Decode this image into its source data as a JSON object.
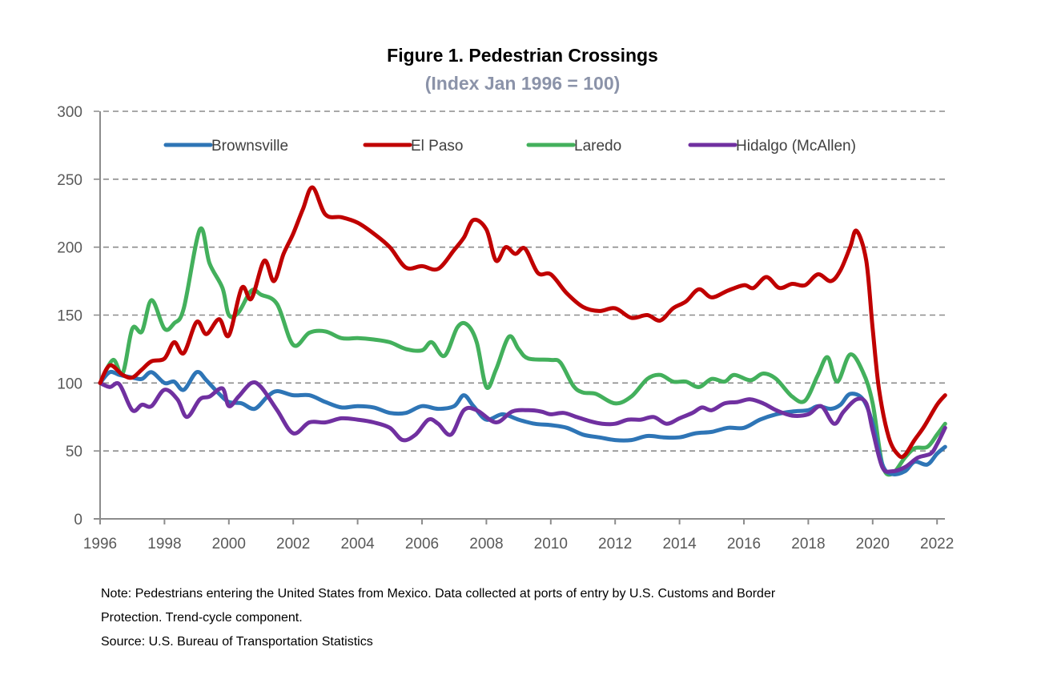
{
  "chart_data": {
    "type": "line",
    "title": "Figure 1. Pedestrian Crossings",
    "subtitle": "(Index Jan 1996 = 100)",
    "xlabel": "",
    "ylabel": "",
    "xlim": [
      1996,
      2022.25
    ],
    "ylim": [
      0,
      300
    ],
    "x_ticks": [
      1996,
      1998,
      2000,
      2002,
      2004,
      2006,
      2008,
      2010,
      2012,
      2014,
      2016,
      2018,
      2020,
      2022
    ],
    "x_tick_labels": [
      "1996",
      "1998",
      "2000",
      "2002",
      "2004",
      "2006",
      "2008",
      "2010",
      "2012",
      "2014",
      "2016",
      "2018",
      "2020",
      "2022"
    ],
    "y_ticks": [
      0,
      50,
      100,
      150,
      200,
      250,
      300
    ],
    "y_tick_labels": [
      "0",
      "50",
      "100",
      "150",
      "200",
      "250",
      "300"
    ],
    "grid": "horizontal dashed",
    "legend_position": "top",
    "series": [
      {
        "name": "Brownsville",
        "color": "#2e75b6",
        "points": [
          [
            1996,
            100
          ],
          [
            1996.3,
            108
          ],
          [
            1996.6,
            106
          ],
          [
            1997,
            104
          ],
          [
            1997.3,
            103
          ],
          [
            1997.6,
            108
          ],
          [
            1998,
            100
          ],
          [
            1998.3,
            101
          ],
          [
            1998.6,
            95
          ],
          [
            1999,
            108
          ],
          [
            1999.3,
            102
          ],
          [
            1999.7,
            92
          ],
          [
            2000,
            86
          ],
          [
            2000.4,
            85
          ],
          [
            2000.8,
            81
          ],
          [
            2001.2,
            90
          ],
          [
            2001.5,
            94
          ],
          [
            2002,
            91
          ],
          [
            2002.5,
            91
          ],
          [
            2003,
            86
          ],
          [
            2003.5,
            82
          ],
          [
            2004,
            83
          ],
          [
            2004.5,
            82
          ],
          [
            2005,
            78
          ],
          [
            2005.5,
            78
          ],
          [
            2006,
            83
          ],
          [
            2006.5,
            81
          ],
          [
            2007,
            83
          ],
          [
            2007.3,
            91
          ],
          [
            2007.6,
            83
          ],
          [
            2008,
            73
          ],
          [
            2008.5,
            77
          ],
          [
            2009,
            73
          ],
          [
            2009.5,
            70
          ],
          [
            2010,
            69
          ],
          [
            2010.5,
            67
          ],
          [
            2011,
            62
          ],
          [
            2011.5,
            60
          ],
          [
            2012,
            58
          ],
          [
            2012.5,
            58
          ],
          [
            2013,
            61
          ],
          [
            2013.5,
            60
          ],
          [
            2014,
            60
          ],
          [
            2014.5,
            63
          ],
          [
            2015,
            64
          ],
          [
            2015.5,
            67
          ],
          [
            2016,
            67
          ],
          [
            2016.5,
            73
          ],
          [
            2017,
            77
          ],
          [
            2017.5,
            79
          ],
          [
            2018,
            80
          ],
          [
            2018.3,
            83
          ],
          [
            2018.7,
            81
          ],
          [
            2019,
            84
          ],
          [
            2019.3,
            92
          ],
          [
            2019.7,
            88
          ],
          [
            2020,
            70
          ],
          [
            2020.3,
            40
          ],
          [
            2020.6,
            33
          ],
          [
            2021,
            35
          ],
          [
            2021.3,
            42
          ],
          [
            2021.7,
            40
          ],
          [
            2022,
            48
          ],
          [
            2022.25,
            53
          ]
        ]
      },
      {
        "name": "El Paso",
        "color": "#c00000",
        "points": [
          [
            1996,
            100
          ],
          [
            1996.3,
            113
          ],
          [
            1996.7,
            106
          ],
          [
            1997,
            104
          ],
          [
            1997.3,
            110
          ],
          [
            1997.6,
            116
          ],
          [
            1998,
            118
          ],
          [
            1998.3,
            130
          ],
          [
            1998.6,
            122
          ],
          [
            1999,
            145
          ],
          [
            1999.3,
            136
          ],
          [
            1999.7,
            147
          ],
          [
            2000,
            135
          ],
          [
            2000.4,
            170
          ],
          [
            2000.7,
            162
          ],
          [
            2001.1,
            190
          ],
          [
            2001.4,
            175
          ],
          [
            2001.7,
            195
          ],
          [
            2002,
            210
          ],
          [
            2002.3,
            228
          ],
          [
            2002.6,
            244
          ],
          [
            2003,
            224
          ],
          [
            2003.5,
            222
          ],
          [
            2004,
            218
          ],
          [
            2004.5,
            210
          ],
          [
            2005,
            200
          ],
          [
            2005.5,
            185
          ],
          [
            2006,
            186
          ],
          [
            2006.5,
            184
          ],
          [
            2007,
            198
          ],
          [
            2007.3,
            207
          ],
          [
            2007.6,
            220
          ],
          [
            2008,
            213
          ],
          [
            2008.3,
            190
          ],
          [
            2008.6,
            200
          ],
          [
            2008.9,
            195
          ],
          [
            2009.2,
            199
          ],
          [
            2009.6,
            181
          ],
          [
            2010,
            180
          ],
          [
            2010.5,
            166
          ],
          [
            2011,
            156
          ],
          [
            2011.5,
            153
          ],
          [
            2012,
            155
          ],
          [
            2012.5,
            148
          ],
          [
            2013,
            150
          ],
          [
            2013.4,
            146
          ],
          [
            2013.8,
            155
          ],
          [
            2014.2,
            160
          ],
          [
            2014.6,
            169
          ],
          [
            2015,
            163
          ],
          [
            2015.5,
            168
          ],
          [
            2016,
            172
          ],
          [
            2016.3,
            170
          ],
          [
            2016.7,
            178
          ],
          [
            2017.1,
            170
          ],
          [
            2017.5,
            173
          ],
          [
            2017.9,
            172
          ],
          [
            2018.3,
            180
          ],
          [
            2018.7,
            175
          ],
          [
            2019,
            183
          ],
          [
            2019.3,
            200
          ],
          [
            2019.5,
            212
          ],
          [
            2019.8,
            190
          ],
          [
            2020,
            140
          ],
          [
            2020.2,
            95
          ],
          [
            2020.5,
            60
          ],
          [
            2020.8,
            47
          ],
          [
            2021,
            47
          ],
          [
            2021.3,
            58
          ],
          [
            2021.6,
            68
          ],
          [
            2022,
            84
          ],
          [
            2022.25,
            91
          ]
        ]
      },
      {
        "name": "Laredo",
        "color": "#43b05c",
        "points": [
          [
            1996,
            100
          ],
          [
            1996.4,
            117
          ],
          [
            1996.7,
            107
          ],
          [
            1997,
            140
          ],
          [
            1997.3,
            138
          ],
          [
            1997.6,
            161
          ],
          [
            1998,
            140
          ],
          [
            1998.3,
            144
          ],
          [
            1998.6,
            155
          ],
          [
            1999.1,
            213
          ],
          [
            1999.4,
            188
          ],
          [
            1999.8,
            170
          ],
          [
            2000,
            150
          ],
          [
            2000.3,
            152
          ],
          [
            2000.7,
            168
          ],
          [
            2001,
            165
          ],
          [
            2001.5,
            158
          ],
          [
            2002,
            128
          ],
          [
            2002.5,
            137
          ],
          [
            2003,
            138
          ],
          [
            2003.5,
            133
          ],
          [
            2004,
            133
          ],
          [
            2004.5,
            132
          ],
          [
            2005,
            130
          ],
          [
            2005.5,
            125
          ],
          [
            2006,
            124
          ],
          [
            2006.3,
            130
          ],
          [
            2006.7,
            120
          ],
          [
            2007.1,
            141
          ],
          [
            2007.4,
            143
          ],
          [
            2007.7,
            130
          ],
          [
            2008,
            97
          ],
          [
            2008.3,
            110
          ],
          [
            2008.7,
            134
          ],
          [
            2009,
            125
          ],
          [
            2009.3,
            118
          ],
          [
            2010,
            117
          ],
          [
            2010.3,
            115
          ],
          [
            2010.7,
            98
          ],
          [
            2011,
            93
          ],
          [
            2011.4,
            92
          ],
          [
            2012,
            85
          ],
          [
            2012.5,
            90
          ],
          [
            2013,
            103
          ],
          [
            2013.4,
            106
          ],
          [
            2013.8,
            101
          ],
          [
            2014.2,
            101
          ],
          [
            2014.6,
            97
          ],
          [
            2015,
            103
          ],
          [
            2015.4,
            101
          ],
          [
            2015.7,
            106
          ],
          [
            2016.2,
            102
          ],
          [
            2016.6,
            107
          ],
          [
            2017,
            103
          ],
          [
            2017.5,
            90
          ],
          [
            2017.9,
            87
          ],
          [
            2018.3,
            106
          ],
          [
            2018.6,
            119
          ],
          [
            2018.9,
            101
          ],
          [
            2019.3,
            121
          ],
          [
            2019.7,
            108
          ],
          [
            2020,
            85
          ],
          [
            2020.3,
            40
          ],
          [
            2020.6,
            33
          ],
          [
            2021,
            45
          ],
          [
            2021.3,
            52
          ],
          [
            2021.7,
            53
          ],
          [
            2022,
            62
          ],
          [
            2022.25,
            70
          ]
        ]
      },
      {
        "name": "Hidalgo (McAllen)",
        "color": "#7030a0",
        "points": [
          [
            1996,
            100
          ],
          [
            1996.3,
            97
          ],
          [
            1996.6,
            99
          ],
          [
            1997,
            80
          ],
          [
            1997.3,
            84
          ],
          [
            1997.6,
            83
          ],
          [
            1998,
            95
          ],
          [
            1998.4,
            88
          ],
          [
            1998.7,
            75
          ],
          [
            1999.1,
            88
          ],
          [
            1999.4,
            90
          ],
          [
            1999.8,
            96
          ],
          [
            2000,
            83
          ],
          [
            2000.3,
            90
          ],
          [
            2000.7,
            100
          ],
          [
            2001,
            97
          ],
          [
            2001.5,
            80
          ],
          [
            2002,
            63
          ],
          [
            2002.5,
            71
          ],
          [
            2003,
            71
          ],
          [
            2003.5,
            74
          ],
          [
            2004,
            73
          ],
          [
            2004.5,
            71
          ],
          [
            2005,
            67
          ],
          [
            2005.4,
            58
          ],
          [
            2005.8,
            62
          ],
          [
            2006.2,
            73
          ],
          [
            2006.5,
            70
          ],
          [
            2006.9,
            62
          ],
          [
            2007.3,
            80
          ],
          [
            2007.7,
            80
          ],
          [
            2008.3,
            71
          ],
          [
            2008.8,
            79
          ],
          [
            2009.3,
            80
          ],
          [
            2009.7,
            79
          ],
          [
            2010,
            77
          ],
          [
            2010.4,
            78
          ],
          [
            2010.8,
            75
          ],
          [
            2011.2,
            72
          ],
          [
            2011.6,
            70
          ],
          [
            2012,
            70
          ],
          [
            2012.4,
            73
          ],
          [
            2012.8,
            73
          ],
          [
            2013.2,
            75
          ],
          [
            2013.6,
            70
          ],
          [
            2014,
            74
          ],
          [
            2014.4,
            78
          ],
          [
            2014.7,
            82
          ],
          [
            2015,
            80
          ],
          [
            2015.4,
            85
          ],
          [
            2015.8,
            86
          ],
          [
            2016.2,
            88
          ],
          [
            2016.6,
            85
          ],
          [
            2017,
            80
          ],
          [
            2017.5,
            76
          ],
          [
            2018,
            77
          ],
          [
            2018.4,
            83
          ],
          [
            2018.8,
            70
          ],
          [
            2019.1,
            79
          ],
          [
            2019.5,
            88
          ],
          [
            2019.8,
            85
          ],
          [
            2020,
            65
          ],
          [
            2020.3,
            38
          ],
          [
            2020.6,
            35
          ],
          [
            2021,
            38
          ],
          [
            2021.4,
            45
          ],
          [
            2021.8,
            48
          ],
          [
            2022,
            55
          ],
          [
            2022.25,
            67
          ]
        ]
      }
    ]
  },
  "footnote": {
    "note_line1": "Note: Pedestrians entering the United States from Mexico. Data collected at ports of entry by U.S. Customs and Border",
    "note_line2": "Protection. Trend-cycle component.",
    "source": "Source: U.S. Bureau of Transportation Statistics"
  }
}
